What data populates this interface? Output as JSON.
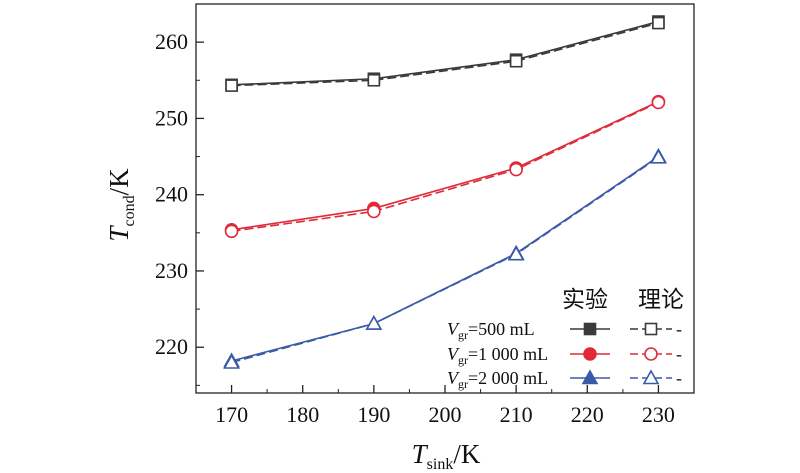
{
  "chart_data": {
    "type": "line",
    "x": [
      170,
      190,
      210,
      230
    ],
    "xlim": [
      165,
      235
    ],
    "ylim": [
      214,
      265
    ],
    "xticks": [
      170,
      180,
      190,
      200,
      210,
      220,
      230
    ],
    "yticks": [
      220,
      230,
      240,
      250,
      260
    ],
    "xticklabels": [
      "170",
      "180",
      "190",
      "200",
      "210",
      "220",
      "230"
    ],
    "yticklabels": [
      "220",
      "230",
      "240",
      "250",
      "260"
    ],
    "xlabel": {
      "main": "T",
      "sub": "sink",
      "unit": "/K"
    },
    "ylabel": {
      "main": "T",
      "sub": "cond",
      "unit": "/K"
    },
    "legend": {
      "placement": "bottom-right",
      "header_experimental": "实验",
      "header_theoretical": "理论"
    },
    "series": [
      {
        "group": "Vgr=500 mL",
        "label_main": "V",
        "label_sub": "gr",
        "label_rest": "=500 mL",
        "color": "#3a3a3a",
        "marker": "square",
        "experimental": [
          254.4,
          255.2,
          257.7,
          262.7
        ],
        "theoretical": [
          254.3,
          255.0,
          257.5,
          262.5
        ],
        "theory_tail": "-"
      },
      {
        "group": "Vgr=1 000 mL",
        "label_main": "V",
        "label_sub": "gr",
        "label_rest": "=1 000 mL",
        "color": "#e02a3a",
        "marker": "circle",
        "experimental": [
          235.4,
          238.2,
          243.5,
          252.2
        ],
        "theoretical": [
          235.2,
          237.8,
          243.3,
          252.1
        ],
        "theory_tail": "-"
      },
      {
        "group": "Vgr=2 000 mL",
        "label_main": "V",
        "label_sub": "gr",
        "label_rest": "=2 000 mL",
        "color": "#3a5aa8",
        "marker": "triangle",
        "experimental": [
          218.2,
          223.1,
          232.3,
          245.0
        ],
        "theoretical": [
          218.0,
          223.1,
          232.2,
          244.9
        ],
        "theory_tail": "-"
      }
    ]
  }
}
